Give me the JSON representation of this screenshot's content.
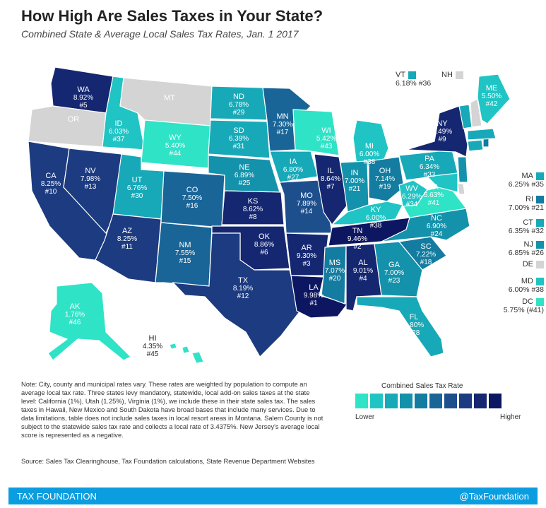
{
  "title": "How High Are Sales Taxes in Your State?",
  "subtitle": "Combined State & Average Local Sales Tax Rates, Jan. 1 2017",
  "colors": {
    "c1": "#2fe3c7",
    "c2": "#20c4c4",
    "c3": "#17a9b8",
    "c4": "#1492ab",
    "c5": "#137ca0",
    "c6": "#1a6597",
    "c7": "#1d4f8c",
    "c8": "#1c3b80",
    "c9": "#152771",
    "c10": "#0d1660",
    "grey": "#d4d4d4",
    "footer": "#0a9de0"
  },
  "states": {
    "WA": {
      "rate": "8.92%",
      "rank": "#5"
    },
    "OR": {
      "rate": "",
      "rank": ""
    },
    "CA": {
      "rate": "8.25%",
      "rank": "#10"
    },
    "ID": {
      "rate": "6.03%",
      "rank": "#37"
    },
    "NV": {
      "rate": "7.98%",
      "rank": "#13"
    },
    "MT": {
      "rate": "",
      "rank": ""
    },
    "WY": {
      "rate": "5.40%",
      "rank": "#44"
    },
    "UT": {
      "rate": "6.76%",
      "rank": "#30"
    },
    "AZ": {
      "rate": "8.25%",
      "rank": "#11"
    },
    "CO": {
      "rate": "7.50%",
      "rank": "#16"
    },
    "NM": {
      "rate": "7.55%",
      "rank": "#15"
    },
    "ND": {
      "rate": "6.78%",
      "rank": "#29"
    },
    "SD": {
      "rate": "6.39%",
      "rank": "#31"
    },
    "NE": {
      "rate": "6.89%",
      "rank": "#25"
    },
    "KS": {
      "rate": "8.62%",
      "rank": "#8"
    },
    "OK": {
      "rate": "8.86%",
      "rank": "#6"
    },
    "TX": {
      "rate": "8.19%",
      "rank": "#12"
    },
    "MN": {
      "rate": "7.30%",
      "rank": "#17"
    },
    "IA": {
      "rate": "6.80%",
      "rank": "#27"
    },
    "MO": {
      "rate": "7.89%",
      "rank": "#14"
    },
    "AR": {
      "rate": "9.30%",
      "rank": "#3"
    },
    "LA": {
      "rate": "9.98%",
      "rank": "#1"
    },
    "WI": {
      "rate": "5.42%",
      "rank": "#43"
    },
    "IL": {
      "rate": "8.64%",
      "rank": "#7"
    },
    "MI": {
      "rate": "6.00%",
      "rank": "#38"
    },
    "IN": {
      "rate": "7.00%",
      "rank": "#21"
    },
    "OH": {
      "rate": "7.14%",
      "rank": "#19"
    },
    "KY": {
      "rate": "6.00%",
      "rank": "#38"
    },
    "TN": {
      "rate": "9.46%",
      "rank": "#2"
    },
    "MS": {
      "rate": "7.07%",
      "rank": "#20"
    },
    "AL": {
      "rate": "9.01%",
      "rank": "#4"
    },
    "GA": {
      "rate": "7.00%",
      "rank": "#23"
    },
    "FL": {
      "rate": "6.80%",
      "rank": "#28"
    },
    "SC": {
      "rate": "7.22%",
      "rank": "#18"
    },
    "NC": {
      "rate": "6.90%",
      "rank": "#24"
    },
    "VA": {
      "rate": "5.63%",
      "rank": "#41"
    },
    "WV": {
      "rate": "6.29%",
      "rank": "#34"
    },
    "PA": {
      "rate": "6.34%",
      "rank": "#33"
    },
    "NY": {
      "rate": "8.49%",
      "rank": "#9"
    },
    "ME": {
      "rate": "5.50%",
      "rank": "#42"
    },
    "AK": {
      "rate": "1.76%",
      "rank": "#46"
    },
    "HI": {
      "rate": "4.35%",
      "rank": "#45"
    }
  },
  "side_states": {
    "VT": {
      "abbr": "VT",
      "text": "6.18% #36"
    },
    "NH": {
      "abbr": "NH"
    },
    "MA": {
      "abbr": "MA",
      "text": "6.25% #35"
    },
    "RI": {
      "abbr": "RI",
      "text": "7.00% #21"
    },
    "CT": {
      "abbr": "CT",
      "text": "6.35% #32"
    },
    "NJ": {
      "abbr": "NJ",
      "text": "6.85% #26"
    },
    "DE": {
      "abbr": "DE"
    },
    "MD": {
      "abbr": "MD",
      "text": "6.00% #38"
    },
    "DC": {
      "abbr": "DC",
      "text": "5.75% (#41)"
    }
  },
  "note": "Note: City, county and municipal rates vary. These rates are weighted by population to compute an average local tax rate. Three states levy mandatory, statewide, local add-on sales taxes at the state level: California (1%), Utah (1.25%), Virginia (1%), we include these in their state sales tax. The sales taxes in Hawaii, New Mexico and South Dakota have broad bases that include many services. Due to data limitations, table does not include sales taxes in local resort areas in Montana. Salem County is not subject to the statewide sales tax rate and collects a local rate of 3.4375%. New Jersey's average local score is represented as a negative.",
  "source": "Source: Sales Tax Clearinghouse, Tax Foundation calculations, State Revenue Department Websites",
  "legend": {
    "title": "Combined Sales Tax Rate",
    "low": "Lower",
    "high": "Higher"
  },
  "footer": {
    "left": "TAX FOUNDATION",
    "right": "@TaxFoundation"
  }
}
